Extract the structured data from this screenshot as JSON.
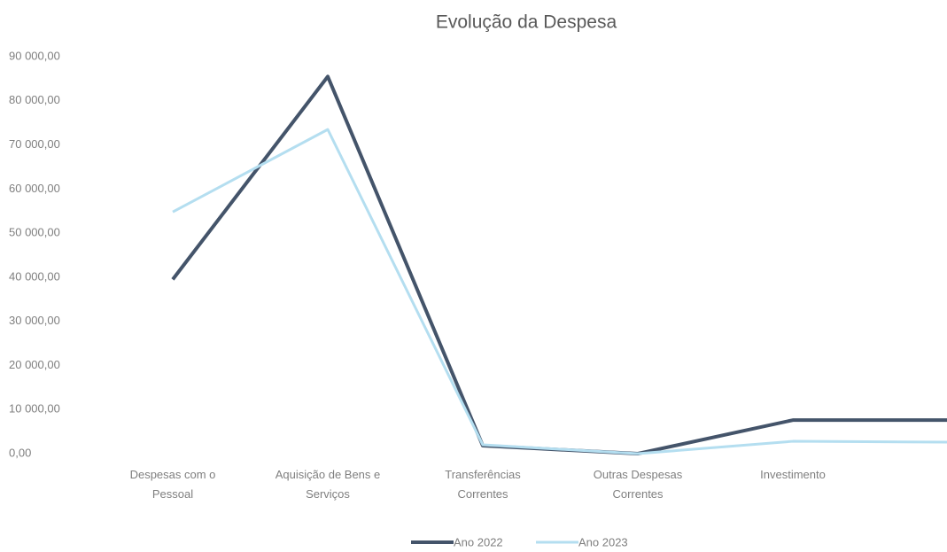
{
  "chart_data": {
    "type": "line",
    "title": "Evolução da Despesa",
    "categories": [
      [
        "Despesas com o",
        "Pessoal"
      ],
      [
        "Aquisição de Bens e",
        "Serviços"
      ],
      [
        "Transferências",
        "Correntes"
      ],
      [
        "Outras Despesas",
        "Correntes"
      ],
      [
        "Investimento"
      ],
      null
    ],
    "series": [
      {
        "name": "Ano 2022",
        "color": "#44546a",
        "values": [
          39500,
          85500,
          1800,
          0,
          7600,
          7600
        ]
      },
      {
        "name": "Ano 2023",
        "color": "#b4def0",
        "values": [
          54800,
          73500,
          2000,
          0,
          2800,
          2600
        ]
      }
    ],
    "ylim": [
      0,
      90000
    ],
    "yticks": [
      {
        "value": 0,
        "label": "0,00"
      },
      {
        "value": 10000,
        "label": "10 000,00"
      },
      {
        "value": 20000,
        "label": "20 000,00"
      },
      {
        "value": 30000,
        "label": "30 000,00"
      },
      {
        "value": 40000,
        "label": "40 000,00"
      },
      {
        "value": 50000,
        "label": "50 000,00"
      },
      {
        "value": 60000,
        "label": "60 000,00"
      },
      {
        "value": 70000,
        "label": "70 000,00"
      },
      {
        "value": 80000,
        "label": "80 000,00"
      },
      {
        "value": 90000,
        "label": "90 000,00"
      }
    ],
    "legend": "bottom"
  }
}
